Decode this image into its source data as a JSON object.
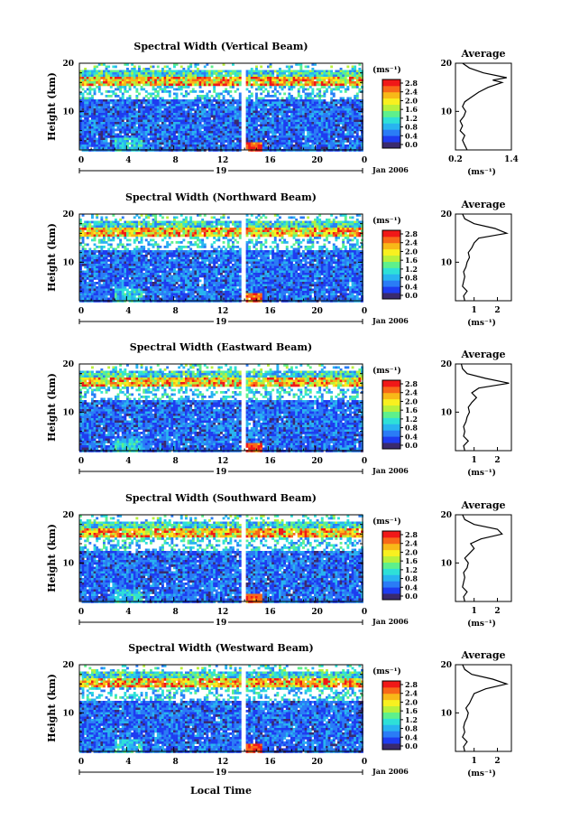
{
  "figure": {
    "xlabel": "Local Time",
    "date_label": "Jan 2006",
    "colorbar_unit": "(ms⁻¹)",
    "colorbar_ticks": [
      "0.0",
      "0.4",
      "0.8",
      "1.2",
      "1.6",
      "2.0",
      "2.4",
      "2.8"
    ],
    "colorbar_colors": [
      "#3a2a6e",
      "#1e3cf0",
      "#2a7cf6",
      "#28b4f0",
      "#2ee0d8",
      "#5ef08c",
      "#b8f03c",
      "#f8f020",
      "#f8b818",
      "#f86818",
      "#f01818"
    ],
    "avg_title": "Average",
    "avg_unit": "(ms⁻¹)"
  },
  "chart_data": [
    {
      "type": "heatmap",
      "title": "Spectral Width (Vertical Beam)",
      "ylabel": "Height (km)",
      "xticks": [
        "0",
        "4",
        "8",
        "12",
        "16",
        "20",
        "0"
      ],
      "day_label": "19",
      "yticks": [
        "20",
        "10"
      ],
      "avg_title": "Average",
      "avg_xticks": [
        "0.2",
        "1.4"
      ],
      "avg_xlim": [
        0.2,
        1.4
      ],
      "avg_profile": [
        [
          0.45,
          2
        ],
        [
          0.4,
          3
        ],
        [
          0.35,
          4
        ],
        [
          0.4,
          5
        ],
        [
          0.3,
          6
        ],
        [
          0.35,
          7
        ],
        [
          0.3,
          8
        ],
        [
          0.38,
          9
        ],
        [
          0.42,
          10
        ],
        [
          0.35,
          11
        ],
        [
          0.4,
          12
        ],
        [
          0.55,
          13
        ],
        [
          0.7,
          14
        ],
        [
          0.9,
          15
        ],
        [
          1.2,
          16
        ],
        [
          1.0,
          16.5
        ],
        [
          1.3,
          17
        ],
        [
          0.8,
          18
        ],
        [
          0.5,
          19
        ],
        [
          0.35,
          20
        ]
      ]
    },
    {
      "type": "heatmap",
      "title": "Spectral Width (Northward Beam)",
      "ylabel": "Height (km)",
      "xticks": [
        "0",
        "4",
        "8",
        "12",
        "16",
        "20",
        "0"
      ],
      "day_label": "19",
      "yticks": [
        "20",
        "10"
      ],
      "avg_title": "Average",
      "avg_xticks": [
        "1",
        "2"
      ],
      "avg_xlim": [
        0.2,
        2.6
      ],
      "avg_profile": [
        [
          0.6,
          2
        ],
        [
          0.55,
          3
        ],
        [
          0.7,
          4
        ],
        [
          0.5,
          5
        ],
        [
          0.55,
          6
        ],
        [
          0.6,
          7
        ],
        [
          0.55,
          8
        ],
        [
          0.65,
          9
        ],
        [
          0.7,
          10
        ],
        [
          0.8,
          11
        ],
        [
          0.75,
          12
        ],
        [
          0.9,
          13
        ],
        [
          1.0,
          14
        ],
        [
          1.2,
          15
        ],
        [
          2.4,
          16
        ],
        [
          1.9,
          17
        ],
        [
          1.0,
          18
        ],
        [
          0.6,
          19
        ],
        [
          0.5,
          20
        ]
      ]
    },
    {
      "type": "heatmap",
      "title": "Spectral Width (Eastward Beam)",
      "ylabel": "Height (km)",
      "xticks": [
        "0",
        "4",
        "8",
        "12",
        "16",
        "20",
        "0"
      ],
      "day_label": "19",
      "yticks": [
        "20",
        "10"
      ],
      "avg_title": "Average",
      "avg_xticks": [
        "1",
        "2"
      ],
      "avg_xlim": [
        0.2,
        2.6
      ],
      "avg_profile": [
        [
          0.6,
          2
        ],
        [
          0.55,
          3
        ],
        [
          0.75,
          4
        ],
        [
          0.55,
          5
        ],
        [
          0.6,
          6
        ],
        [
          0.55,
          7
        ],
        [
          0.65,
          8
        ],
        [
          0.7,
          9
        ],
        [
          0.8,
          10
        ],
        [
          0.75,
          11
        ],
        [
          0.9,
          12
        ],
        [
          1.1,
          13
        ],
        [
          0.9,
          14
        ],
        [
          1.2,
          15
        ],
        [
          2.5,
          16
        ],
        [
          1.5,
          17
        ],
        [
          0.7,
          18
        ],
        [
          0.5,
          19
        ],
        [
          0.45,
          20
        ]
      ]
    },
    {
      "type": "heatmap",
      "title": "Spectral Width (Southward Beam)",
      "ylabel": "Height (km)",
      "xticks": [
        "0",
        "4",
        "8",
        "12",
        "16",
        "20",
        "0"
      ],
      "day_label": "19",
      "yticks": [
        "20",
        "10"
      ],
      "avg_title": "Average",
      "avg_xticks": [
        "1",
        "2"
      ],
      "avg_xlim": [
        0.2,
        2.6
      ],
      "avg_profile": [
        [
          0.6,
          2
        ],
        [
          0.55,
          3
        ],
        [
          0.7,
          4
        ],
        [
          0.5,
          5
        ],
        [
          0.55,
          6
        ],
        [
          0.6,
          7
        ],
        [
          0.55,
          8
        ],
        [
          0.7,
          9
        ],
        [
          0.75,
          10
        ],
        [
          0.6,
          11
        ],
        [
          0.8,
          12
        ],
        [
          1.0,
          13
        ],
        [
          0.85,
          14
        ],
        [
          1.3,
          15
        ],
        [
          2.2,
          16
        ],
        [
          2.0,
          17
        ],
        [
          1.0,
          18
        ],
        [
          0.6,
          19
        ],
        [
          0.5,
          20
        ]
      ]
    },
    {
      "type": "heatmap",
      "title": "Spectral Width (Westward Beam)",
      "ylabel": "Height (km)",
      "xticks": [
        "0",
        "4",
        "8",
        "12",
        "16",
        "20",
        "0"
      ],
      "day_label": "19",
      "yticks": [
        "20",
        "10"
      ],
      "avg_title": "Average",
      "avg_xticks": [
        "1",
        "2"
      ],
      "avg_xlim": [
        0.2,
        2.6
      ],
      "avg_profile": [
        [
          0.6,
          2
        ],
        [
          0.55,
          3
        ],
        [
          0.7,
          4
        ],
        [
          0.5,
          5
        ],
        [
          0.6,
          6
        ],
        [
          0.55,
          7
        ],
        [
          0.6,
          8
        ],
        [
          0.7,
          9
        ],
        [
          0.75,
          10
        ],
        [
          0.65,
          11
        ],
        [
          0.8,
          12
        ],
        [
          0.9,
          13
        ],
        [
          1.0,
          14
        ],
        [
          1.5,
          15
        ],
        [
          2.4,
          16
        ],
        [
          1.8,
          17
        ],
        [
          0.9,
          18
        ],
        [
          0.6,
          19
        ],
        [
          0.5,
          20
        ]
      ]
    }
  ]
}
